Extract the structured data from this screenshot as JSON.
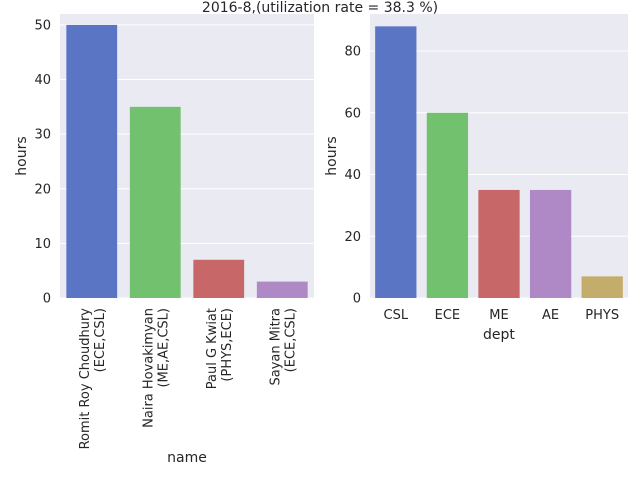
{
  "title": "2016-8,(utilization rate = 38.3 %)",
  "chart_data": [
    {
      "type": "bar",
      "xlabel": "name",
      "ylabel": "hours",
      "ylim": [
        0,
        52
      ],
      "yticks": [
        0,
        10,
        20,
        30,
        40,
        50
      ],
      "grid": true,
      "categories": [
        [
          "Romit Roy Choudhury",
          "(ECE,CSL)"
        ],
        [
          "Naira Hovakimyan",
          "(ME,AE,CSL)"
        ],
        [
          "Paul G Kwiat",
          "(PHYS,ECE)"
        ],
        [
          "Sayan Mitra",
          "(ECE,CSL)"
        ]
      ],
      "values": [
        50,
        35,
        7,
        3
      ],
      "colors": [
        "#5975c4",
        "#72c16f",
        "#c86768",
        "#ae89c5"
      ]
    },
    {
      "type": "bar",
      "xlabel": "dept",
      "ylabel": "hours",
      "ylim": [
        0,
        92
      ],
      "yticks": [
        0,
        20,
        40,
        60,
        80
      ],
      "grid": true,
      "categories": [
        "CSL",
        "ECE",
        "ME",
        "AE",
        "PHYS"
      ],
      "values": [
        88,
        60,
        35,
        35,
        7
      ],
      "colors": [
        "#5975c4",
        "#72c16f",
        "#c86768",
        "#ae89c5",
        "#c4ac6a"
      ]
    }
  ]
}
